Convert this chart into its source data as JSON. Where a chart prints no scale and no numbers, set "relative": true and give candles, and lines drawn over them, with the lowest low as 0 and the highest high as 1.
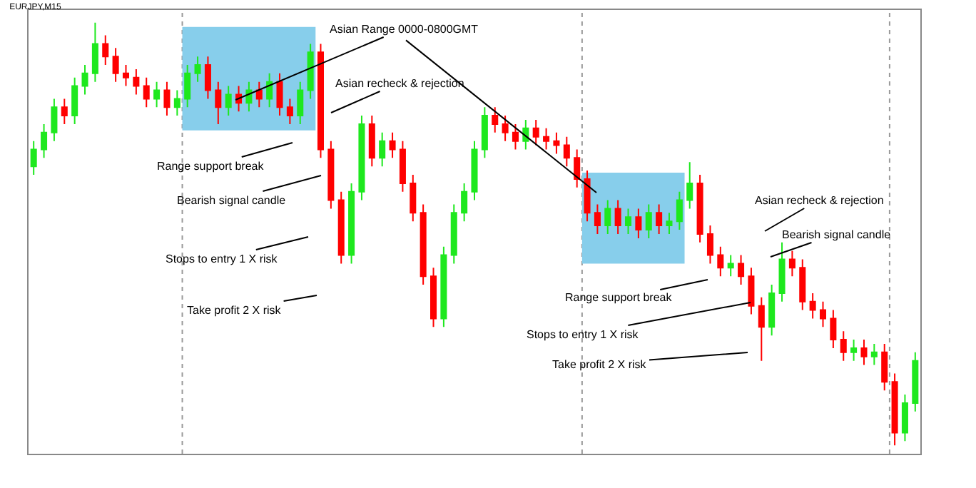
{
  "chart_data": {
    "type": "candlestick",
    "title": "EURJPY,M15",
    "relative": true,
    "categories": [
      null,
      null,
      null,
      null,
      null,
      null,
      null,
      null,
      null,
      null,
      null,
      null,
      null,
      null,
      null,
      null,
      null,
      null,
      null,
      null,
      null,
      null,
      null,
      null,
      null,
      null,
      null,
      null,
      null,
      null,
      null,
      null,
      null,
      null,
      null,
      null,
      null,
      null,
      null,
      null,
      null,
      null,
      null,
      null,
      null,
      null,
      null,
      null,
      null,
      null,
      null,
      null,
      null,
      null,
      null,
      null,
      null,
      null,
      null,
      null,
      null,
      null,
      null,
      null,
      null,
      null,
      null,
      null,
      null,
      null,
      null,
      null,
      null,
      null,
      null,
      null,
      null,
      null,
      null,
      null,
      null,
      null,
      null,
      null,
      null,
      null,
      null
    ],
    "ohlc": [
      [
        0.66,
        0.72,
        0.64,
        0.7
      ],
      [
        0.7,
        0.76,
        0.68,
        0.74
      ],
      [
        0.74,
        0.82,
        0.72,
        0.8
      ],
      [
        0.8,
        0.82,
        0.76,
        0.78
      ],
      [
        0.78,
        0.87,
        0.76,
        0.85
      ],
      [
        0.85,
        0.9,
        0.83,
        0.88
      ],
      [
        0.88,
        1,
        0.86,
        0.95
      ],
      [
        0.95,
        0.97,
        0.9,
        0.92
      ],
      [
        0.92,
        0.94,
        0.86,
        0.88
      ],
      [
        0.88,
        0.9,
        0.85,
        0.87
      ],
      [
        0.87,
        0.89,
        0.83,
        0.85
      ],
      [
        0.85,
        0.87,
        0.8,
        0.82
      ],
      [
        0.82,
        0.86,
        0.8,
        0.84
      ],
      [
        0.84,
        0.86,
        0.78,
        0.8
      ],
      [
        0.8,
        0.84,
        0.78,
        0.82
      ],
      [
        0.82,
        0.9,
        0.8,
        0.88
      ],
      [
        0.88,
        0.92,
        0.86,
        0.9
      ],
      [
        0.9,
        0.92,
        0.82,
        0.84
      ],
      [
        0.84,
        0.86,
        0.76,
        0.8
      ],
      [
        0.8,
        0.85,
        0.78,
        0.83
      ],
      [
        0.83,
        0.85,
        0.79,
        0.81
      ],
      [
        0.81,
        0.86,
        0.79,
        0.84
      ],
      [
        0.84,
        0.86,
        0.8,
        0.82
      ],
      [
        0.82,
        0.88,
        0.8,
        0.86
      ],
      [
        0.86,
        0.88,
        0.78,
        0.8
      ],
      [
        0.8,
        0.82,
        0.76,
        0.78
      ],
      [
        0.78,
        0.86,
        0.76,
        0.84
      ],
      [
        0.84,
        0.95,
        0.82,
        0.93
      ],
      [
        0.93,
        0.95,
        0.68,
        0.7
      ],
      [
        0.7,
        0.72,
        0.56,
        0.58
      ],
      [
        0.58,
        0.6,
        0.43,
        0.45
      ],
      [
        0.45,
        0.62,
        0.43,
        0.6
      ],
      [
        0.6,
        0.78,
        0.58,
        0.76
      ],
      [
        0.76,
        0.78,
        0.66,
        0.68
      ],
      [
        0.68,
        0.74,
        0.66,
        0.72
      ],
      [
        0.72,
        0.74,
        0.68,
        0.7
      ],
      [
        0.7,
        0.72,
        0.6,
        0.62
      ],
      [
        0.62,
        0.64,
        0.53,
        0.55
      ],
      [
        0.55,
        0.57,
        0.38,
        0.4
      ],
      [
        0.4,
        0.42,
        0.28,
        0.3
      ],
      [
        0.3,
        0.47,
        0.28,
        0.45
      ],
      [
        0.45,
        0.57,
        0.43,
        0.55
      ],
      [
        0.55,
        0.62,
        0.53,
        0.6
      ],
      [
        0.6,
        0.72,
        0.58,
        0.7
      ],
      [
        0.7,
        0.8,
        0.68,
        0.78
      ],
      [
        0.78,
        0.8,
        0.74,
        0.76
      ],
      [
        0.76,
        0.78,
        0.72,
        0.74
      ],
      [
        0.74,
        0.76,
        0.7,
        0.72
      ],
      [
        0.72,
        0.77,
        0.7,
        0.75
      ],
      [
        0.75,
        0.77,
        0.71,
        0.73
      ],
      [
        0.73,
        0.75,
        0.7,
        0.72
      ],
      [
        0.72,
        0.74,
        0.69,
        0.71
      ],
      [
        0.71,
        0.73,
        0.66,
        0.68
      ],
      [
        0.68,
        0.7,
        0.61,
        0.63
      ],
      [
        0.63,
        0.65,
        0.53,
        0.55
      ],
      [
        0.55,
        0.57,
        0.5,
        0.52
      ],
      [
        0.52,
        0.58,
        0.5,
        0.56
      ],
      [
        0.56,
        0.58,
        0.5,
        0.52
      ],
      [
        0.52,
        0.56,
        0.5,
        0.54
      ],
      [
        0.54,
        0.56,
        0.49,
        0.51
      ],
      [
        0.51,
        0.57,
        0.49,
        0.55
      ],
      [
        0.55,
        0.57,
        0.5,
        0.52
      ],
      [
        0.52,
        0.55,
        0.5,
        0.53
      ],
      [
        0.53,
        0.6,
        0.51,
        0.58
      ],
      [
        0.58,
        0.67,
        0.56,
        0.62
      ],
      [
        0.62,
        0.64,
        0.48,
        0.5
      ],
      [
        0.5,
        0.52,
        0.43,
        0.45
      ],
      [
        0.45,
        0.47,
        0.4,
        0.42
      ],
      [
        0.42,
        0.45,
        0.4,
        0.43
      ],
      [
        0.43,
        0.45,
        0.38,
        0.4
      ],
      [
        0.4,
        0.42,
        0.31,
        0.33
      ],
      [
        0.33,
        0.35,
        0.2,
        0.28
      ],
      [
        0.28,
        0.38,
        0.26,
        0.36
      ],
      [
        0.36,
        0.48,
        0.34,
        0.44
      ],
      [
        0.44,
        0.46,
        0.4,
        0.42
      ],
      [
        0.42,
        0.44,
        0.32,
        0.34
      ],
      [
        0.34,
        0.36,
        0.3,
        0.32
      ],
      [
        0.32,
        0.34,
        0.28,
        0.3
      ],
      [
        0.3,
        0.32,
        0.23,
        0.25
      ],
      [
        0.25,
        0.27,
        0.2,
        0.22
      ],
      [
        0.22,
        0.25,
        0.2,
        0.23
      ],
      [
        0.23,
        0.25,
        0.19,
        0.21
      ],
      [
        0.21,
        0.24,
        0.19,
        0.22
      ],
      [
        0.22,
        0.24,
        0.13,
        0.15
      ],
      [
        0.15,
        0.17,
        0,
        0.03
      ],
      [
        0.03,
        0.12,
        0.01,
        0.1
      ],
      [
        0.1,
        0.22,
        0.08,
        0.2
      ]
    ],
    "colors": [
      "#1ee81e",
      "#1ee81e",
      "#1ee81e",
      "#ff0000",
      "#1ee81e",
      "#1ee81e",
      "#1ee81e",
      "#ff0000",
      "#ff0000",
      "#ff0000",
      "#ff0000",
      "#ff0000",
      "#1ee81e",
      "#ff0000",
      "#1ee81e",
      "#1ee81e",
      "#1ee81e",
      "#ff0000",
      "#ff0000",
      "#1ee81e",
      "#ff0000",
      "#1ee81e",
      "#ff0000",
      "#1ee81e",
      "#ff0000",
      "#ff0000",
      "#1ee81e",
      "#1ee81e",
      "#ff0000",
      "#ff0000",
      "#ff0000",
      "#1ee81e",
      "#1ee81e",
      "#ff0000",
      "#1ee81e",
      "#ff0000",
      "#ff0000",
      "#ff0000",
      "#ff0000",
      "#ff0000",
      "#1ee81e",
      "#1ee81e",
      "#1ee81e",
      "#1ee81e",
      "#1ee81e",
      "#ff0000",
      "#ff0000",
      "#ff0000",
      "#1ee81e",
      "#ff0000",
      "#ff0000",
      "#ff0000",
      "#ff0000",
      "#ff0000",
      "#ff0000",
      "#ff0000",
      "#1ee81e",
      "#ff0000",
      "#1ee81e",
      "#ff0000",
      "#1ee81e",
      "#ff0000",
      "#1ee81e",
      "#1ee81e",
      "#1ee81e",
      "#ff0000",
      "#ff0000",
      "#ff0000",
      "#1ee81e",
      "#ff0000",
      "#ff0000",
      "#ff0000",
      "#1ee81e",
      "#1ee81e",
      "#ff0000",
      "#ff0000",
      "#ff0000",
      "#ff0000",
      "#ff0000",
      "#ff0000",
      "#1ee81e",
      "#ff0000",
      "#1ee81e",
      "#ff0000",
      "#ff0000",
      "#1ee81e",
      "#1ee81e"
    ],
    "bands": [
      {
        "axis": "y",
        "from": 0.745,
        "to": 0.99,
        "label": null,
        "color": "#87ceeb"
      },
      {
        "axis": "y",
        "from": 0.43,
        "to": 0.645,
        "label": null,
        "color": "#87ceeb"
      }
    ],
    "annotations": [
      "Asian Range 0000-0800GMT",
      "Asian recheck & rejection",
      "Range support break",
      "Bearish signal candle",
      "Stops to entry 1 X risk",
      "Take profit 2 X risk",
      "Asian recheck & rejection",
      "Bearish signal candle",
      "Range support break",
      "Stops to entry 1 X risk",
      "Take profit 2 X risk"
    ]
  }
}
